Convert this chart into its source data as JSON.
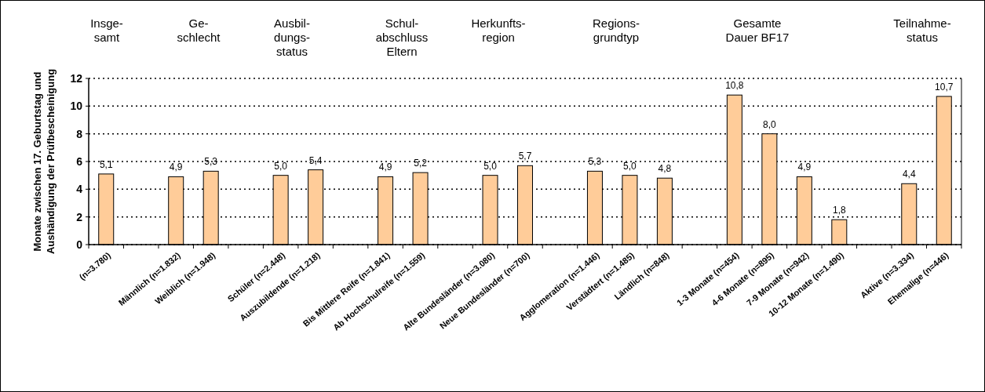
{
  "chart_data": {
    "type": "bar",
    "categories": [
      "(n=3.780)",
      null,
      "Männlich (n=1.832)",
      "Weiblich (n=1.948)",
      null,
      "Schüler (n=2.448)",
      "Auszubildende (n=1.218)",
      null,
      "Bis Mittlere Reife (n=1.841)",
      "Ab Hochschulreife (n=1.559)",
      null,
      "Alte Bundesländer (n=3.080)",
      "Neue Bundesländer (n=700)",
      null,
      "Agglomeration (n=1.446)",
      "Verstädtert (n=1.485)",
      "Ländlich (n=848)",
      null,
      "1-3 Monate (n=454)",
      "4-6 Monate (n=895)",
      "7-9 Monate (n=942)",
      "10-12 Monate (n=1.490)",
      null,
      "Aktive (n=3.334)",
      "Ehemalige (n=446)"
    ],
    "values": [
      5.1,
      null,
      4.9,
      5.3,
      null,
      5.0,
      5.4,
      null,
      4.9,
      5.2,
      null,
      5.0,
      5.7,
      null,
      5.3,
      5.0,
      4.8,
      null,
      10.8,
      8.0,
      4.9,
      1.8,
      null,
      4.4,
      10.7
    ],
    "value_labels": [
      "5,1",
      null,
      "4,9",
      "5,3",
      null,
      "5,0",
      "5,4",
      null,
      "4,9",
      "5,2",
      null,
      "5,0",
      "5,7",
      null,
      "5,3",
      "5,0",
      "4,8",
      null,
      "10,8",
      "8,0",
      "4,9",
      "1,8",
      null,
      "4,4",
      "10,7"
    ],
    "color": "#ffcc99",
    "ylabel": "Monate zwischen 17. Geburtstag und Aushändigung der Prüfbescheinigung",
    "ylim": [
      0,
      12
    ],
    "yticks": [
      0,
      2,
      4,
      6,
      8,
      10,
      12
    ],
    "grid": "y",
    "annotations": [
      "Insge-\nsamt",
      "Ge-\nschlecht",
      "Ausbil-\ndungs-\nstatus",
      "Schul-\nabschluss\nEltern",
      "Herkunfts-\nregion",
      "Regions-\ngrundtyp",
      "Gesamte\nDauer BF17",
      "Teilnahme-\nstatus"
    ]
  }
}
